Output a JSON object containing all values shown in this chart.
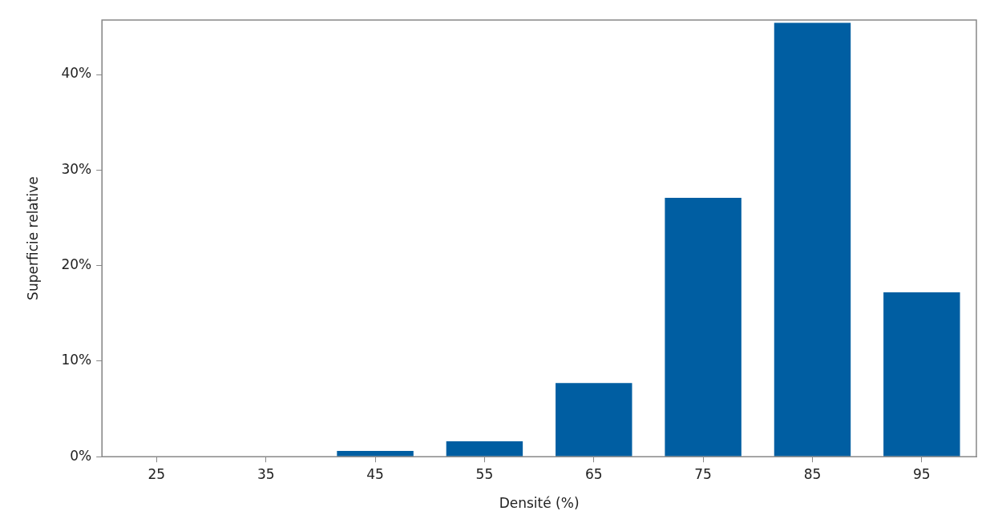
{
  "chart_data": {
    "type": "bar",
    "xlabel": "Densité (%)",
    "ylabel": "Superficie relative",
    "categories": [
      "25",
      "35",
      "45",
      "55",
      "65",
      "75",
      "85",
      "95"
    ],
    "values": [
      0,
      0,
      0.6,
      1.6,
      7.7,
      27.1,
      45.4,
      17.2
    ],
    "color": "#005ea2",
    "ylim": [
      0,
      45.7
    ],
    "yticks": [
      {
        "value": 0,
        "label": "0%"
      },
      {
        "value": 10,
        "label": "10%"
      },
      {
        "value": 20,
        "label": "20%"
      },
      {
        "value": 30,
        "label": "30%"
      },
      {
        "value": 40,
        "label": "40%"
      }
    ],
    "grid": false,
    "legend": false
  }
}
